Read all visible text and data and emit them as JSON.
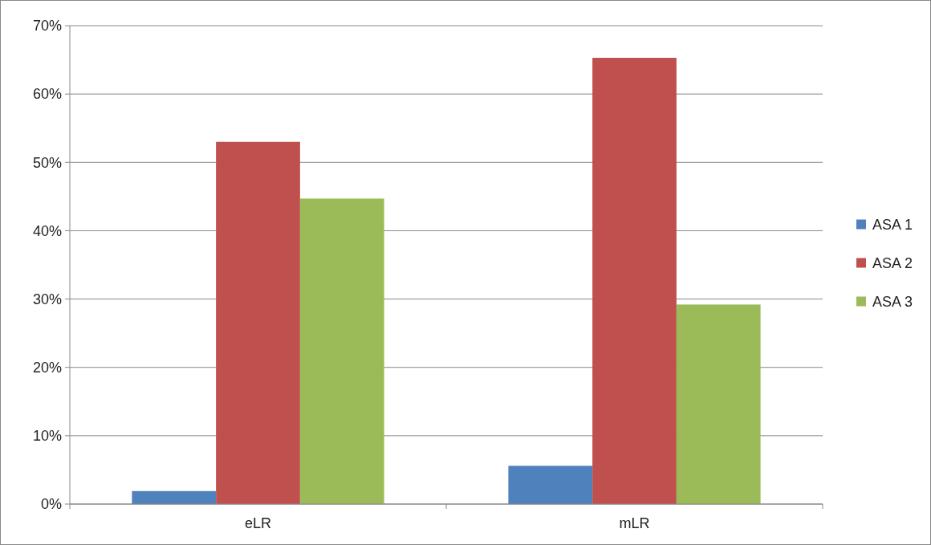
{
  "chart_data": {
    "type": "bar",
    "categories": [
      "eLR",
      "mLR"
    ],
    "series": [
      {
        "name": "ASA 1",
        "color": "#4f81bd",
        "values": [
          1.9,
          5.6
        ]
      },
      {
        "name": "ASA 2",
        "color": "#c0504d",
        "values": [
          53.0,
          65.3
        ]
      },
      {
        "name": "ASA 3",
        "color": "#9bbb59",
        "values": [
          44.7,
          29.2
        ]
      }
    ],
    "ylim": [
      0,
      70
    ],
    "yticks": [
      {
        "value": 0,
        "label": "0%"
      },
      {
        "value": 10,
        "label": "10%"
      },
      {
        "value": 20,
        "label": "20%"
      },
      {
        "value": 30,
        "label": "30%"
      },
      {
        "value": 40,
        "label": "40%"
      },
      {
        "value": 50,
        "label": "50%"
      },
      {
        "value": 60,
        "label": "60%"
      },
      {
        "value": 70,
        "label": "70%"
      }
    ],
    "grid": "y",
    "legend": "right"
  }
}
